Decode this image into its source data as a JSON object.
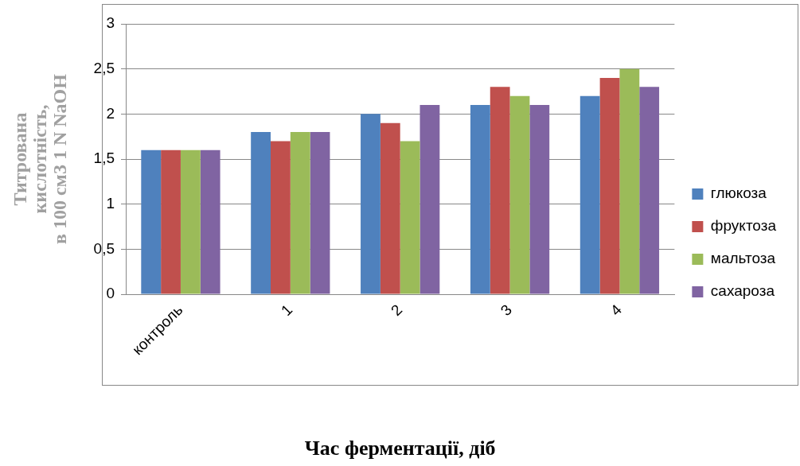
{
  "chart_data": {
    "type": "bar",
    "xlabel": "Час ферментації, діб",
    "ylabel": "Титрована\nкислотність,\nв 100 см3 1 N NaOH",
    "categories": [
      "контроль",
      "1",
      "2",
      "3",
      "4"
    ],
    "series": [
      {
        "name": "глюкоза",
        "color": "#4f81bd",
        "values": [
          1.6,
          1.8,
          2.0,
          2.1,
          2.2
        ]
      },
      {
        "name": "фруктоза",
        "color": "#c0504d",
        "values": [
          1.6,
          1.7,
          1.9,
          2.3,
          2.4
        ]
      },
      {
        "name": "мальтоза",
        "color": "#9bbb59",
        "values": [
          1.6,
          1.8,
          1.7,
          2.2,
          2.5
        ]
      },
      {
        "name": "сахароза",
        "color": "#8064a2",
        "values": [
          1.6,
          1.8,
          2.1,
          2.1,
          2.3
        ]
      }
    ],
    "ylim": [
      0,
      3
    ],
    "yticks": [
      {
        "value": 0,
        "label": "0"
      },
      {
        "value": 0.5,
        "label": "0,5"
      },
      {
        "value": 1,
        "label": "1"
      },
      {
        "value": 1.5,
        "label": "1,5"
      },
      {
        "value": 2,
        "label": "2"
      },
      {
        "value": 2.5,
        "label": "2,5"
      },
      {
        "value": 3,
        "label": "3"
      }
    ],
    "grid": "y",
    "legend": "right"
  }
}
